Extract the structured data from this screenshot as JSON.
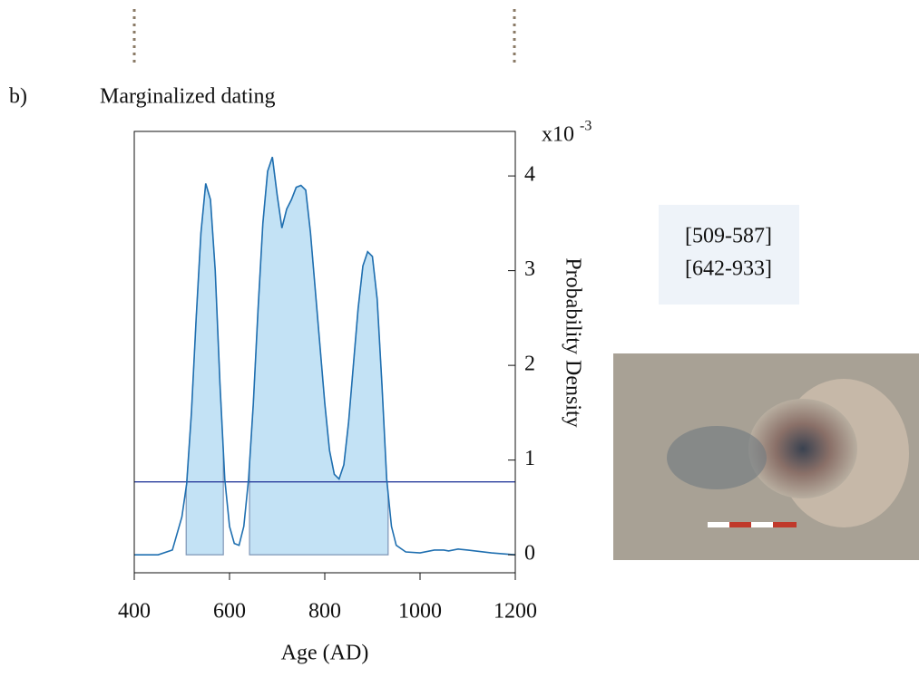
{
  "chart_data": {
    "type": "line",
    "panel_label": "b)",
    "title": "Marginalized dating",
    "x_label": "Age (AD)",
    "y_label": "Probability Density",
    "y_exponent": "x10",
    "y_exponent_power": "-3",
    "x": [
      400,
      450,
      480,
      500,
      510,
      520,
      530,
      540,
      550,
      560,
      570,
      580,
      590,
      600,
      610,
      620,
      630,
      640,
      650,
      660,
      670,
      680,
      690,
      700,
      710,
      720,
      730,
      740,
      750,
      760,
      770,
      780,
      790,
      800,
      810,
      820,
      830,
      840,
      850,
      860,
      870,
      880,
      890,
      900,
      910,
      920,
      930,
      940,
      950,
      970,
      1000,
      1030,
      1050,
      1060,
      1080,
      1100,
      1150,
      1200
    ],
    "series": [
      {
        "name": "density",
        "color": "#1f6fb0",
        "values": [
          0.0,
          0.0,
          0.05,
          0.4,
          0.75,
          1.5,
          2.5,
          3.4,
          3.92,
          3.75,
          3.0,
          1.8,
          0.8,
          0.3,
          0.12,
          0.1,
          0.3,
          0.8,
          1.6,
          2.6,
          3.5,
          4.05,
          4.2,
          3.8,
          3.45,
          3.65,
          3.75,
          3.88,
          3.9,
          3.85,
          3.4,
          2.8,
          2.2,
          1.6,
          1.1,
          0.85,
          0.8,
          0.95,
          1.4,
          2.0,
          2.6,
          3.05,
          3.2,
          3.15,
          2.7,
          1.8,
          0.8,
          0.3,
          0.1,
          0.03,
          0.02,
          0.05,
          0.05,
          0.04,
          0.06,
          0.05,
          0.02,
          0.0
        ]
      }
    ],
    "threshold": 0.77,
    "threshold_color": "#2b3f9e",
    "hpd_intervals": [
      [
        509,
        587
      ],
      [
        642,
        933
      ]
    ],
    "hpd_color": "#c3e2f5",
    "interval_labels": [
      "[509-587]",
      "[642-933]"
    ],
    "xlim": [
      400,
      1200
    ],
    "xticks": [
      400,
      600,
      800,
      1000,
      1200
    ],
    "ylim": [
      -0.19,
      4.47
    ],
    "yticks": [
      0,
      1,
      2,
      3,
      4
    ]
  }
}
